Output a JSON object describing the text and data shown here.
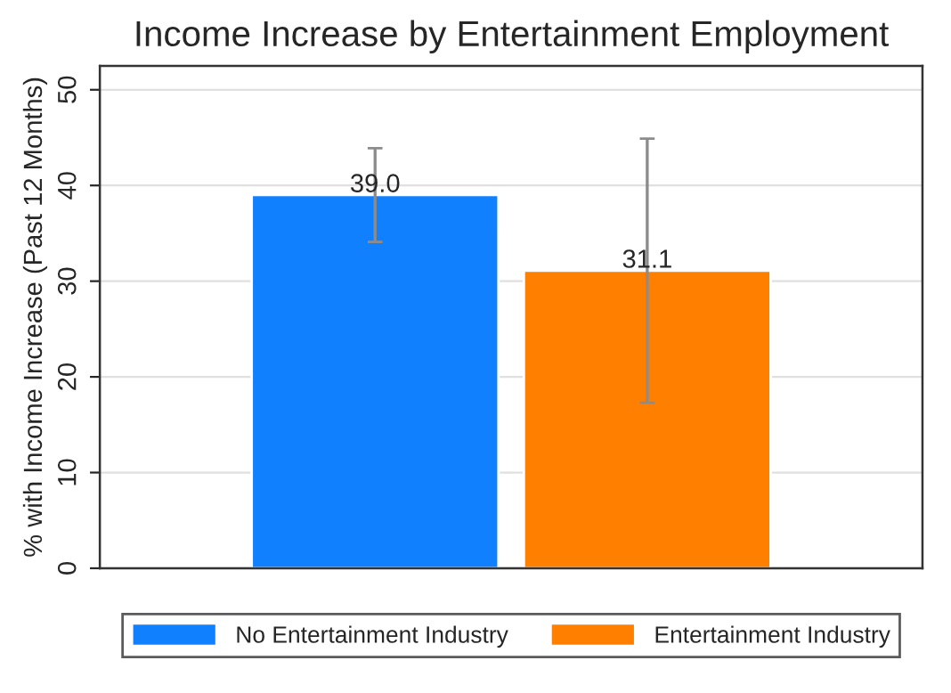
{
  "chart_data": {
    "type": "bar",
    "title": "Income Increase by Entertainment Employment",
    "ylabel": "% with Income Increase (Past 12 Months)",
    "categories": [
      null
    ],
    "series": [
      {
        "name": "No Entertainment Industry",
        "color": "#1180ff",
        "values": [
          39.0
        ],
        "errors": [
          [
            34.1,
            43.9
          ]
        ],
        "value_labels": [
          "39.0"
        ]
      },
      {
        "name": "Entertainment Industry",
        "color": "#ff7f00",
        "values": [
          31.1
        ],
        "errors": [
          [
            17.3,
            44.9
          ]
        ],
        "value_labels": [
          "31.1"
        ]
      }
    ],
    "ylim": [
      0,
      52.5
    ],
    "yticks": [
      0,
      10,
      20,
      30,
      40,
      50
    ],
    "grid": "y",
    "legend": "bottom"
  }
}
